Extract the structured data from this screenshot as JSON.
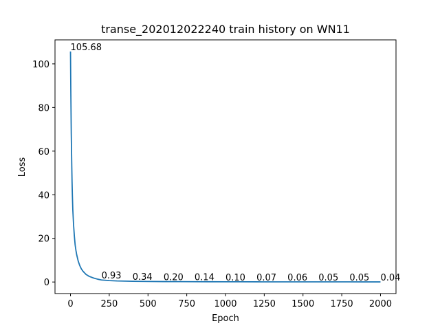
{
  "chart_data": {
    "type": "line",
    "title": "transe_202012022240 train history on WN11",
    "xlabel": "Epoch",
    "ylabel": "Loss",
    "xlim": [
      -100,
      2100
    ],
    "ylim": [
      -5.3,
      111.0
    ],
    "xticks": [
      0,
      250,
      500,
      750,
      1000,
      1250,
      1500,
      1750,
      2000
    ],
    "yticks": [
      0,
      20,
      40,
      60,
      80,
      100
    ],
    "grid": false,
    "series": [
      {
        "color": "#1f77b4",
        "x": [
          0,
          2,
          5,
          8,
          10,
          12,
          15,
          20,
          25,
          30,
          35,
          40,
          50,
          60,
          70,
          80,
          100,
          120,
          150,
          175,
          200,
          250,
          300,
          400,
          500,
          600,
          700,
          800,
          900,
          1000,
          1100,
          1200,
          1300,
          1400,
          1500,
          1600,
          1700,
          1800,
          1900,
          2000
        ],
        "y": [
          105.68,
          88.0,
          68.0,
          54.0,
          46.0,
          40.0,
          33.0,
          26.0,
          21.0,
          17.0,
          14.5,
          12.5,
          9.5,
          7.5,
          6.0,
          5.0,
          3.5,
          2.6,
          1.8,
          1.3,
          0.93,
          0.65,
          0.48,
          0.34,
          0.26,
          0.2,
          0.17,
          0.14,
          0.12,
          0.1,
          0.085,
          0.07,
          0.065,
          0.06,
          0.055,
          0.05,
          0.05,
          0.05,
          0.045,
          0.04
        ]
      }
    ],
    "annotations": [
      {
        "x": 0,
        "y": 105.68,
        "text": "105.68"
      },
      {
        "x": 200,
        "y": 0.93,
        "text": "0.93"
      },
      {
        "x": 400,
        "y": 0.34,
        "text": "0.34"
      },
      {
        "x": 600,
        "y": 0.2,
        "text": "0.20"
      },
      {
        "x": 800,
        "y": 0.14,
        "text": "0.14"
      },
      {
        "x": 1000,
        "y": 0.1,
        "text": "0.10"
      },
      {
        "x": 1200,
        "y": 0.07,
        "text": "0.07"
      },
      {
        "x": 1400,
        "y": 0.06,
        "text": "0.06"
      },
      {
        "x": 1600,
        "y": 0.05,
        "text": "0.05"
      },
      {
        "x": 1800,
        "y": 0.05,
        "text": "0.05"
      },
      {
        "x": 2000,
        "y": 0.04,
        "text": "0.04"
      }
    ]
  }
}
